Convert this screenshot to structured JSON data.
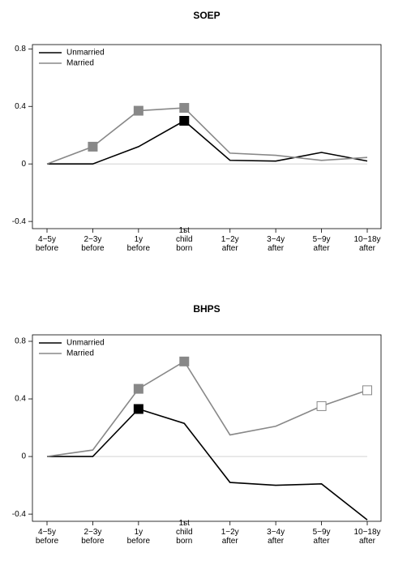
{
  "chart_data": [
    {
      "type": "line",
      "title": "SOEP",
      "categories": [
        "4−5y\nbefore",
        "2−3y\nbefore",
        "1y\nbefore",
        "1st\nchild\nborn",
        "1−2y\nafter",
        "3−4y\nafter",
        "5−9y\nafter",
        "10−18y\nafter"
      ],
      "series": [
        {
          "name": "Unmarried",
          "color": "#000000",
          "values": [
            0,
            0,
            0.12,
            0.3,
            0.025,
            0.02,
            0.08,
            0.02
          ],
          "markers": [
            null,
            null,
            null,
            "filled",
            null,
            null,
            null,
            null
          ]
        },
        {
          "name": "Married",
          "color": "#888888",
          "values": [
            0,
            0.12,
            0.37,
            0.39,
            0.075,
            0.06,
            0.025,
            0.045
          ],
          "markers": [
            null,
            "filled",
            "filled",
            "filled",
            null,
            null,
            null,
            null
          ]
        }
      ],
      "ylim": [
        -0.45,
        0.83
      ],
      "yticks": [
        -0.4,
        0,
        0.4,
        0.8
      ],
      "legend": "top-left"
    },
    {
      "type": "line",
      "title": "BHPS",
      "categories": [
        "4−5y\nbefore",
        "2−3y\nbefore",
        "1y\nbefore",
        "1st\nchild\nborn",
        "1−2y\nafter",
        "3−4y\nafter",
        "5−9y\nafter",
        "10−18y\nafter"
      ],
      "series": [
        {
          "name": "Unmarried",
          "color": "#000000",
          "values": [
            0,
            0,
            0.33,
            0.23,
            -0.18,
            -0.2,
            -0.19,
            -0.44
          ],
          "markers": [
            null,
            null,
            "filled",
            null,
            null,
            null,
            null,
            null
          ]
        },
        {
          "name": "Married",
          "color": "#888888",
          "values": [
            0,
            0.045,
            0.47,
            0.66,
            0.15,
            0.21,
            0.35,
            0.46
          ],
          "markers": [
            null,
            null,
            "filled",
            "filled",
            null,
            null,
            "open",
            "open"
          ]
        }
      ],
      "ylim": [
        -0.45,
        0.845
      ],
      "yticks": [
        -0.4,
        0,
        0.4,
        0.8
      ],
      "legend": "top-left"
    }
  ]
}
